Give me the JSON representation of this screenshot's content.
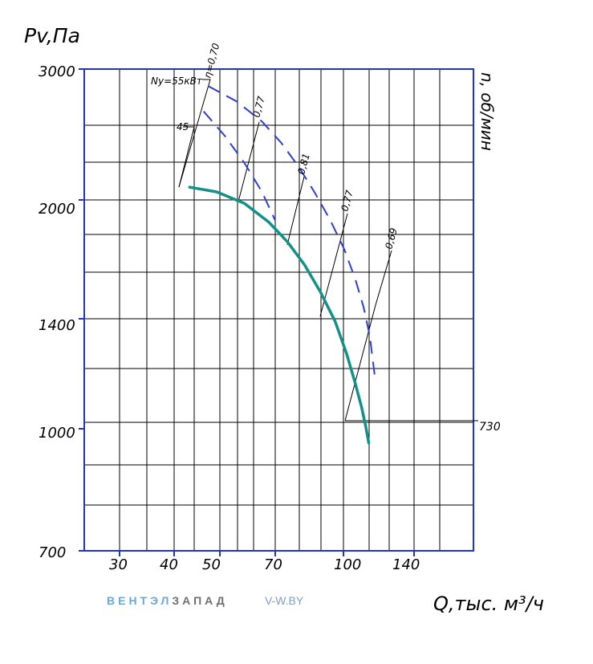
{
  "chart_data": {
    "type": "line",
    "ylabel": "Pv,Па",
    "xlabel": "Q,тыс. м³/ч",
    "y2label": "n, об/мин",
    "x_ticks": [
      "30",
      "40",
      "50",
      "70",
      "100",
      "140"
    ],
    "y_ticks": [
      "3000",
      "2000",
      "1400",
      "1000",
      "700"
    ],
    "speed_label": "730",
    "power_labels": [
      "Ny=55кВт",
      "45"
    ],
    "efficiency_labels": [
      "η=0,70",
      "0,77",
      "0,81",
      "0,77",
      "0,69"
    ],
    "colors": {
      "axis": "#2233cc",
      "grid": "#000000",
      "pressure_curve": "#139088",
      "power_curves": "#2e3ed6"
    },
    "series": [
      {
        "kind": "pressure",
        "x": [
          42,
          48,
          55,
          62,
          68,
          74,
          80,
          86,
          91,
          95,
          98,
          100,
          101.5
        ],
        "y": [
          2100,
          2070,
          2000,
          1890,
          1780,
          1660,
          1530,
          1400,
          1270,
          1160,
          1080,
          1020,
          970
        ]
      },
      {
        "kind": "power",
        "label": "Ny=55кВт",
        "x": [
          46,
          53,
          60,
          66,
          72,
          78,
          84,
          90,
          95,
          99,
          102,
          104.5
        ],
        "y": [
          2850,
          2720,
          2560,
          2400,
          2230,
          2060,
          1900,
          1740,
          1590,
          1460,
          1340,
          1190
        ]
      },
      {
        "kind": "power",
        "label": "45",
        "x": [
          45,
          50,
          55,
          60,
          64
        ],
        "y": [
          2640,
          2450,
          2260,
          2070,
          1900
        ]
      }
    ]
  },
  "branding": {
    "word1": "ВЕНТЭЛ",
    "word2": "ЗАПАД",
    "site": "V-W.BY"
  }
}
